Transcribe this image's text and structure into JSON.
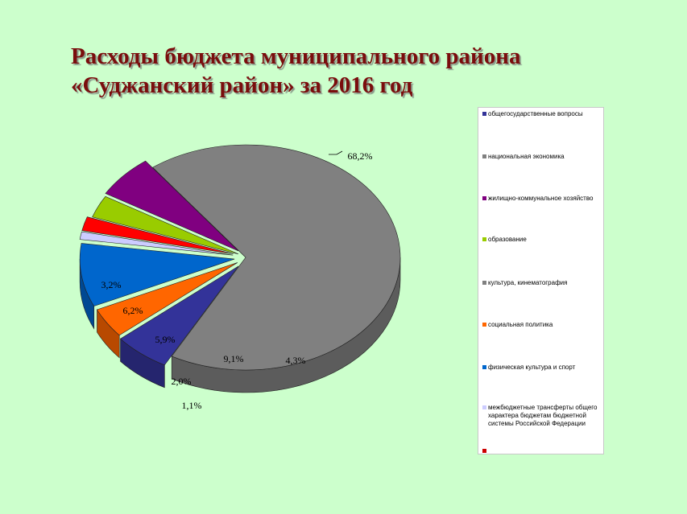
{
  "title": {
    "line1": "Расходы бюджета муниципального района",
    "line2": "«Суджанский район»  за 2016 год"
  },
  "chart_data": {
    "type": "pie",
    "style": "3d-exploded",
    "legend_position": "right",
    "slices": [
      {
        "label": "общегосударственные вопросы",
        "value": 0,
        "value_label": "",
        "color": "#333399"
      },
      {
        "label": "национальная экономика",
        "value": 3.2,
        "value_label": "3,2%",
        "color": "#99cc00"
      },
      {
        "label": "жилищно-коммунальное хозяйство",
        "value": 6.2,
        "value_label": "6,2%",
        "color": "#800080"
      },
      {
        "label": "образование",
        "value": 68.2,
        "value_label": "68,2%",
        "color": "#808080"
      },
      {
        "label": "культура, кинематография",
        "value": 5.9,
        "value_label": "5,9%",
        "color": "#333399"
      },
      {
        "label": "социальная политика",
        "value": 4.3,
        "value_label": "4,3%",
        "color": "#ff6600"
      },
      {
        "label": "физическая культура и спорт",
        "value": 9.1,
        "value_label": "9,1%",
        "color": "#0066cc"
      },
      {
        "label": "межбюджетные трансферты общего характера бюджетам бюджетной системы Российской Федерации",
        "value": 1.1,
        "value_label": "1,1%",
        "color": "#ccccff"
      },
      {
        "label": "",
        "value": 2.0,
        "value_label": "2,0%",
        "color": "#ff0000"
      }
    ],
    "legend": [
      {
        "label": "общегосударственные вопросы",
        "color": "#333399"
      },
      {
        "label": "национальная экономика",
        "color": "#808080"
      },
      {
        "label": "жилищно-коммунальное хозяйство",
        "color": "#800080"
      },
      {
        "label": "образование",
        "color": "#99cc00"
      },
      {
        "label": "культура, кинематография",
        "color": "#808080"
      },
      {
        "label": "социальная политика",
        "color": "#ff6600"
      },
      {
        "label": "физическая культура и спорт",
        "color": "#0066cc"
      },
      {
        "label": "межбюджетные трансферты общего характера бюджетам бюджетной системы Российской Федерации",
        "color": "#ccccff"
      },
      {
        "label": "",
        "color": "#cc0000"
      }
    ]
  }
}
